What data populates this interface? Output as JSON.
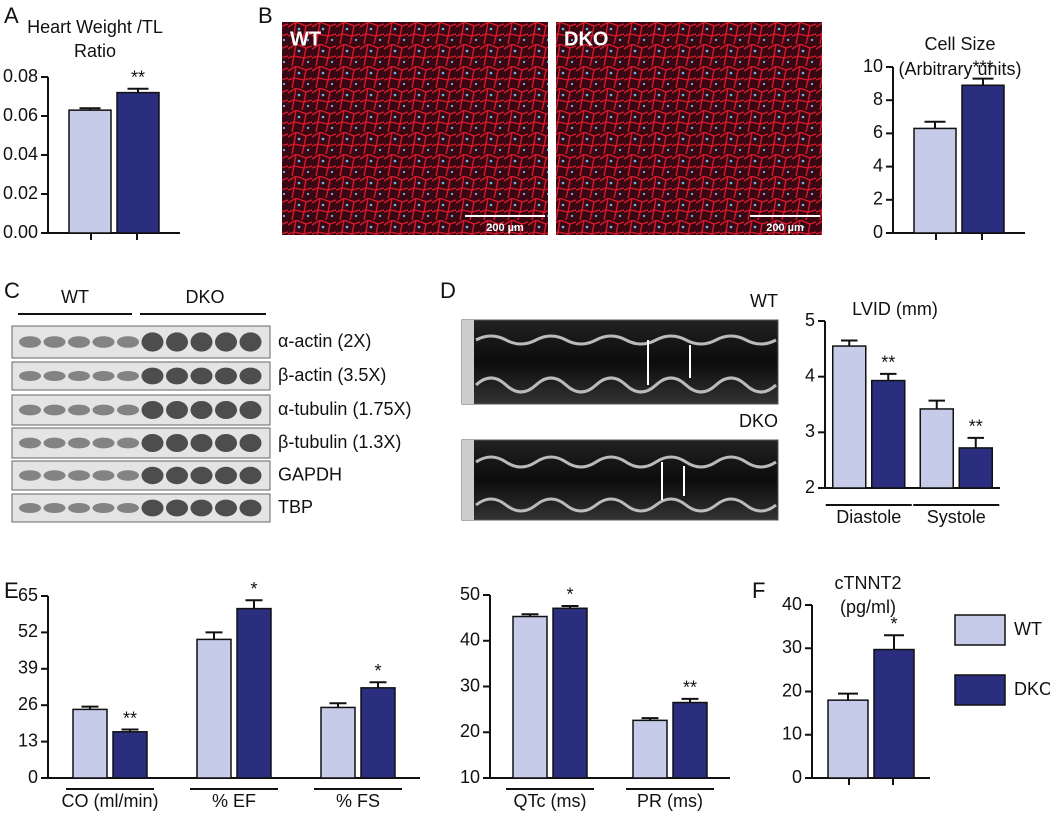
{
  "panel_letters": [
    "A",
    "B",
    "C",
    "D",
    "E",
    "F"
  ],
  "micrographs": [
    {
      "label": "WT",
      "scale_bar": "200 µm"
    },
    {
      "label": "DKO",
      "scale_bar": "200 µm"
    }
  ],
  "blot": {
    "groups": [
      "WT",
      "DKO"
    ],
    "rows": [
      "α-actin (2X)",
      "β-actin (3.5X)",
      "α-tubulin (1.75X)",
      "β-tubulin (1.3X)",
      "GAPDH",
      "TBP"
    ]
  },
  "echo": {
    "labels": [
      "WT",
      "DKO"
    ]
  },
  "chart_data": [
    {
      "type": "bar",
      "title": [
        "Heart Weight /TL",
        "Ratio"
      ],
      "categories": [
        null
      ],
      "series": [
        {
          "color": "#c5cbe8",
          "values": [
            0.063
          ],
          "errors": [
            0.001
          ]
        },
        {
          "color": "#2b2e7e",
          "values": [
            0.072
          ],
          "errors": [
            0.002
          ],
          "annotations": [
            "**"
          ]
        }
      ],
      "ylim": [
        0,
        0.08
      ],
      "yticks": [
        {
          "value": 0,
          "label": "0.00"
        },
        0.02,
        0.04,
        0.06,
        0.08
      ]
    },
    {
      "type": "bar",
      "title": [
        "Cell Size",
        "(Arbitrary units)"
      ],
      "categories": [
        null
      ],
      "series": [
        {
          "color": "#c5cbe8",
          "values": [
            6.3
          ],
          "errors": [
            0.4
          ]
        },
        {
          "color": "#2b2e7e",
          "values": [
            8.9
          ],
          "errors": [
            0.4
          ],
          "annotations": [
            "***"
          ]
        }
      ],
      "ylim": [
        0,
        10
      ],
      "yticks": [
        0,
        2,
        4,
        6,
        8,
        10
      ]
    },
    {
      "type": "bar",
      "title": "LVID (mm)",
      "categories": [
        "Diastole",
        "Systole"
      ],
      "series": [
        {
          "color": "#c5cbe8",
          "values": [
            4.55,
            3.42
          ],
          "errors": [
            0.1,
            0.15
          ]
        },
        {
          "color": "#2b2e7e",
          "values": [
            3.93,
            2.72
          ],
          "errors": [
            0.12,
            0.18
          ],
          "annotations": [
            "**",
            "**"
          ]
        }
      ],
      "ylim": [
        2,
        5
      ],
      "yticks": [
        2,
        3,
        4,
        5
      ]
    },
    {
      "type": "bar",
      "categories": [
        "CO (ml/min)",
        "% EF",
        "% FS"
      ],
      "series": [
        {
          "color": "#c5cbe8",
          "values": [
            24.5,
            49.5,
            25.2
          ],
          "errors": [
            1,
            2.5,
            1.5
          ]
        },
        {
          "color": "#2b2e7e",
          "values": [
            16.5,
            60.5,
            32.2
          ],
          "errors": [
            0.8,
            3,
            2
          ],
          "annotations": [
            "**",
            "*",
            "*"
          ]
        }
      ],
      "ylim": [
        0,
        65
      ],
      "yticks": [
        0,
        13,
        26,
        39,
        52,
        65
      ]
    },
    {
      "type": "bar",
      "categories": [
        "QTc (ms)",
        "PR (ms)"
      ],
      "series": [
        {
          "color": "#c5cbe8",
          "values": [
            45.3,
            22.6
          ],
          "errors": [
            0.5,
            0.5
          ]
        },
        {
          "color": "#2b2e7e",
          "values": [
            47.1,
            26.5
          ],
          "errors": [
            0.5,
            0.8
          ],
          "annotations": [
            "*",
            "**"
          ]
        }
      ],
      "ylim": [
        10,
        50
      ],
      "yticks": [
        10,
        20,
        30,
        40,
        50
      ]
    },
    {
      "type": "bar",
      "title": [
        "cTNNT2",
        "(pg/ml)"
      ],
      "categories": [
        null
      ],
      "series": [
        {
          "name": "WT",
          "color": "#c5cbe8",
          "values": [
            18
          ],
          "errors": [
            1.5
          ]
        },
        {
          "name": "DKO",
          "color": "#2b2e7e",
          "values": [
            29.7
          ],
          "errors": [
            3.3
          ],
          "annotations": [
            "*"
          ]
        }
      ],
      "ylim": [
        0,
        40
      ],
      "yticks": [
        0,
        10,
        20,
        30,
        40
      ]
    }
  ]
}
